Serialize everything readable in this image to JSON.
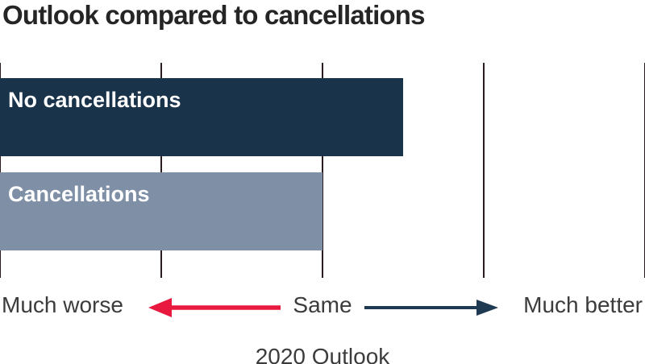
{
  "title": "Outlook compared to cancellations",
  "colors": {
    "background": "#ffffff",
    "title_text": "#252525",
    "axis_text": "#3c3c3c",
    "bar_label_text": "#ffffff",
    "gridline": "#2b1d1d",
    "arrow_red": "#e8183f",
    "arrow_navy": "#1d3a52",
    "bar_dark_navy": "#19334a",
    "bar_blue_gray": "#7e8fa6"
  },
  "chart_data": {
    "type": "bar",
    "orientation": "horizontal",
    "title": "Outlook compared to cancellations",
    "categories": [
      "No cancellations",
      "Cancellations"
    ],
    "values": [
      3.5,
      3.0
    ],
    "bar_colors": [
      "#19334a",
      "#7e8fa6"
    ],
    "xlabel": "2020 Outlook",
    "ylabel": "",
    "xlim": [
      1,
      5
    ],
    "x_tick_positions": [
      1,
      2,
      3,
      4,
      5
    ],
    "x_tick_labels": [
      "Much worse",
      "",
      "Same",
      "",
      "Much better"
    ],
    "grid": true,
    "legend": false,
    "annotations": [
      {
        "type": "arrow",
        "direction": "left",
        "color": "#e8183f",
        "meaning": "toward Much worse"
      },
      {
        "type": "arrow",
        "direction": "right",
        "color": "#1d3a52",
        "meaning": "toward Much better"
      }
    ]
  },
  "axis": {
    "left_label": "Much worse",
    "center_label": "Same",
    "right_label": "Much better",
    "axis_title": "2020 Outlook"
  }
}
